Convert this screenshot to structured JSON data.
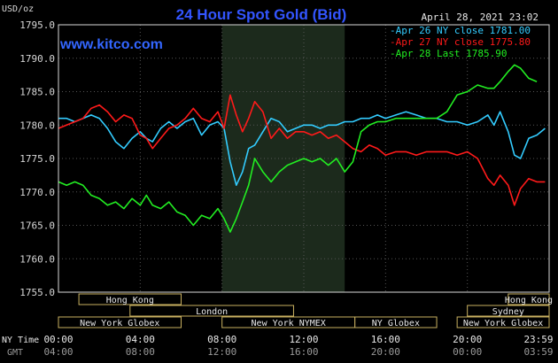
{
  "chart_data": {
    "type": "line",
    "title": "24 Hour Spot Gold (Bid)",
    "site": "www.kitco.com",
    "date_label": "April 28, 2021 23:02",
    "y_unit": "USD/oz",
    "ylim": [
      1755,
      1795
    ],
    "y_ticks": [
      "1795.0",
      "1790.0",
      "1785.0",
      "1780.0",
      "1775.0",
      "1770.0",
      "1765.0",
      "1760.0",
      "1755.0"
    ],
    "x_ticks_ny": [
      "00:00",
      "04:00",
      "08:00",
      "12:00",
      "16:00",
      "20:00",
      "23:59"
    ],
    "x_ticks_gmt": [
      "04:00",
      "08:00",
      "12:00",
      "16:00",
      "20:00",
      "00:00",
      "03:59"
    ],
    "row_label_ny": "NY Time",
    "row_label_gmt": "GMT",
    "legend": [
      {
        "label": "Apr 26 NY close 1781.00",
        "color": "#33ccff"
      },
      {
        "label": "Apr 27 NY close 1775.80",
        "color": "#ff1a1a"
      },
      {
        "label": "Apr 28 Last 1785.90",
        "color": "#22ee22"
      }
    ],
    "sessions": [
      {
        "name": "Hong Kong",
        "start": 1.0,
        "end": 6.0,
        "row": 0
      },
      {
        "name": "Hong Kong",
        "start": 22.0,
        "end": 24.0,
        "row": 0
      },
      {
        "name": "London",
        "start": 3.5,
        "end": 11.5,
        "row": 1
      },
      {
        "name": "Sydney",
        "start": 20.0,
        "end": 24.0,
        "row": 1
      },
      {
        "name": "New York Globex",
        "start": 0.0,
        "end": 6.0,
        "row": 2
      },
      {
        "name": "New York NYMEX",
        "start": 8.0,
        "end": 14.5,
        "row": 2
      },
      {
        "name": "NY Globex",
        "start": 14.5,
        "end": 18.5,
        "row": 2
      },
      {
        "name": "New York Globex",
        "start": 19.5,
        "end": 24.0,
        "row": 2
      }
    ],
    "x_unit": "hours (NY time)",
    "series": [
      {
        "name": "Apr 26",
        "color": "#33ccff",
        "x": [
          0,
          0.4,
          0.8,
          1.2,
          1.6,
          2,
          2.4,
          2.8,
          3.2,
          3.6,
          4,
          4.3,
          4.6,
          5,
          5.4,
          5.8,
          6.2,
          6.6,
          7,
          7.4,
          7.8,
          8.1,
          8.4,
          8.7,
          9,
          9.3,
          9.6,
          10,
          10.4,
          10.8,
          11.2,
          11.6,
          12,
          12.4,
          12.8,
          13.2,
          13.6,
          14,
          14.4,
          14.8,
          15.2,
          15.6,
          16,
          16.5,
          17,
          17.5,
          18,
          18.5,
          19,
          19.5,
          20,
          20.5,
          21,
          21.3,
          21.6,
          22,
          22.3,
          22.6,
          23,
          23.4,
          23.8
        ],
        "y": [
          1781.0,
          1781.0,
          1780.5,
          1781.0,
          1781.5,
          1781.0,
          1779.5,
          1777.5,
          1776.5,
          1778.0,
          1779.0,
          1778.0,
          1777.5,
          1779.5,
          1780.5,
          1779.5,
          1780.5,
          1781.0,
          1778.5,
          1780.0,
          1780.5,
          1779.5,
          1774.5,
          1771.0,
          1773.0,
          1776.5,
          1777.0,
          1779.0,
          1781.0,
          1780.5,
          1779.0,
          1779.5,
          1780.0,
          1780.0,
          1779.5,
          1780.0,
          1780.0,
          1780.5,
          1780.5,
          1781.0,
          1781.0,
          1781.5,
          1781.0,
          1781.5,
          1782.0,
          1781.5,
          1781.0,
          1781.0,
          1780.5,
          1780.5,
          1780.0,
          1780.5,
          1781.5,
          1780.0,
          1782.0,
          1779.0,
          1775.5,
          1775.0,
          1778.0,
          1778.5,
          1779.5
        ]
      },
      {
        "name": "Apr 27",
        "color": "#ff1a1a",
        "x": [
          0,
          0.4,
          0.8,
          1.2,
          1.6,
          2,
          2.4,
          2.8,
          3.2,
          3.6,
          4,
          4.3,
          4.6,
          5,
          5.4,
          5.8,
          6.2,
          6.6,
          7,
          7.4,
          7.8,
          8.1,
          8.4,
          8.7,
          9,
          9.3,
          9.6,
          10,
          10.4,
          10.8,
          11.2,
          11.6,
          12,
          12.4,
          12.8,
          13.2,
          13.6,
          14,
          14.4,
          14.8,
          15.2,
          15.6,
          16,
          16.5,
          17,
          17.5,
          18,
          18.5,
          19,
          19.5,
          20,
          20.5,
          21,
          21.3,
          21.6,
          22,
          22.3,
          22.6,
          23,
          23.4,
          23.8
        ],
        "y": [
          1779.5,
          1780.0,
          1780.5,
          1781.0,
          1782.5,
          1783.0,
          1782.0,
          1780.5,
          1781.5,
          1781.0,
          1778.5,
          1778.0,
          1776.5,
          1778.0,
          1779.5,
          1780.0,
          1781.0,
          1782.5,
          1781.0,
          1780.5,
          1782.0,
          1779.5,
          1784.5,
          1781.5,
          1779.0,
          1781.0,
          1783.5,
          1782.0,
          1778.0,
          1779.5,
          1778.0,
          1779.0,
          1779.0,
          1778.5,
          1779.0,
          1778.0,
          1778.5,
          1777.5,
          1776.5,
          1776.0,
          1777.0,
          1776.5,
          1775.5,
          1776.0,
          1776.0,
          1775.5,
          1776.0,
          1776.0,
          1776.0,
          1775.5,
          1776.0,
          1775.0,
          1772.0,
          1771.0,
          1772.5,
          1771.0,
          1768.0,
          1770.5,
          1772.0,
          1771.5,
          1771.5
        ]
      },
      {
        "name": "Apr 28",
        "color": "#22ee22",
        "x": [
          0,
          0.4,
          0.8,
          1.2,
          1.6,
          2,
          2.4,
          2.8,
          3.2,
          3.6,
          4,
          4.3,
          4.6,
          5,
          5.4,
          5.8,
          6.2,
          6.6,
          7,
          7.4,
          7.8,
          8.1,
          8.4,
          8.7,
          9,
          9.3,
          9.6,
          10,
          10.4,
          10.8,
          11.2,
          11.6,
          12,
          12.4,
          12.8,
          13.2,
          13.6,
          14,
          14.4,
          14.8,
          15.2,
          15.6,
          16,
          16.5,
          17,
          17.5,
          18,
          18.5,
          19,
          19.5,
          20,
          20.5,
          21,
          21.3,
          21.6,
          22,
          22.3,
          22.6,
          23,
          23.4,
          23.8
        ],
        "y": [
          1771.5,
          1771.0,
          1771.5,
          1771.0,
          1769.5,
          1769.0,
          1768.0,
          1768.5,
          1767.5,
          1769.0,
          1768.0,
          1769.5,
          1768.0,
          1767.5,
          1768.5,
          1767.0,
          1766.5,
          1765.0,
          1766.5,
          1766.0,
          1767.5,
          1766.0,
          1764.0,
          1766.0,
          1768.5,
          1771.0,
          1775.0,
          1773.0,
          1771.5,
          1773.0,
          1774.0,
          1774.5,
          1775.0,
          1774.5,
          1775.0,
          1774.0,
          1775.0,
          1773.0,
          1774.5,
          1779.0,
          1780.0,
          1780.5,
          1780.5,
          1781.0,
          1781.0,
          1781.0,
          1781.0,
          1781.0,
          1782.0,
          1784.5,
          1785.0,
          1786.0,
          1785.5,
          1785.5,
          1786.5,
          1788.0,
          1789.0,
          1788.5,
          1787.0,
          1786.5,
          null
        ]
      }
    ]
  }
}
